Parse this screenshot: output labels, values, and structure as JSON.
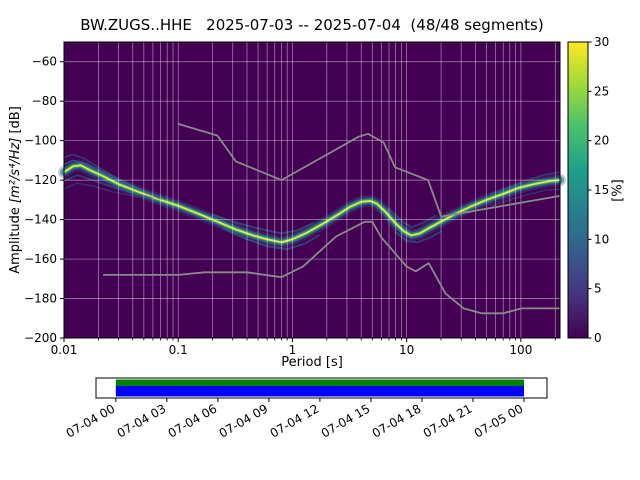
{
  "figure": {
    "title": "BW.ZUGS..HHE   2025-07-03 -- 2025-07-04  (48/48 segments)",
    "xlabel": "Period [s]",
    "ylabel": {
      "pre": "Amplitude ",
      "math": "[m²/s⁴/Hz]",
      "post": " [dB]"
    },
    "colorbar_label": "[%]"
  },
  "chart_data": {
    "type": "heatmap",
    "title": "BW.ZUGS..HHE   2025-07-03 -- 2025-07-04  (48/48 segments)",
    "xlabel": "Period [s]",
    "ylabel": "Amplitude [m^2/s^4/Hz] [dB]",
    "x_scale": "log",
    "xlim": [
      0.01,
      220
    ],
    "ylim": [
      -200,
      -50
    ],
    "x_ticks": {
      "values": [
        0.01,
        0.1,
        1,
        10,
        100
      ],
      "labels": [
        "0.01",
        "0.1",
        "1",
        "10",
        "100"
      ]
    },
    "y_ticks": {
      "values": [
        -200,
        -180,
        -160,
        -140,
        -120,
        -100,
        -80,
        -60
      ],
      "labels": [
        "−200",
        "−180",
        "−160",
        "−140",
        "−120",
        "−100",
        "−80",
        "−60"
      ]
    },
    "background_color": "#440154",
    "grid_color": "#ffffff",
    "colorbar": {
      "label": "[%]",
      "ticks": [
        "0",
        "5",
        "10",
        "15",
        "20",
        "25",
        "30"
      ],
      "tick_values": [
        0,
        5,
        10,
        15,
        20,
        25,
        30
      ],
      "vmin": 0,
      "vmax": 30,
      "colormap": "viridis",
      "colors": [
        "#440154",
        "#46327e",
        "#365c8d",
        "#277f8e",
        "#1fa187",
        "#4ac16d",
        "#a0da39",
        "#fde725"
      ]
    },
    "psd_mode_db_by_period": [
      [
        0.01,
        -116
      ],
      [
        0.012,
        -113
      ],
      [
        0.014,
        -112.5
      ],
      [
        0.017,
        -115
      ],
      [
        0.022,
        -118
      ],
      [
        0.03,
        -122
      ],
      [
        0.045,
        -126
      ],
      [
        0.07,
        -130
      ],
      [
        0.1,
        -133
      ],
      [
        0.15,
        -137
      ],
      [
        0.22,
        -141
      ],
      [
        0.32,
        -145
      ],
      [
        0.45,
        -148
      ],
      [
        0.6,
        -150
      ],
      [
        0.8,
        -151.5
      ],
      [
        1.0,
        -150
      ],
      [
        1.3,
        -147
      ],
      [
        1.8,
        -142.5
      ],
      [
        2.5,
        -137.5
      ],
      [
        3.2,
        -133.5
      ],
      [
        4.0,
        -131
      ],
      [
        4.8,
        -130.5
      ],
      [
        5.5,
        -132
      ],
      [
        6.5,
        -136
      ],
      [
        8,
        -142
      ],
      [
        9.5,
        -146
      ],
      [
        11,
        -148
      ],
      [
        13,
        -147
      ],
      [
        16,
        -144
      ],
      [
        20,
        -141
      ],
      [
        27,
        -137
      ],
      [
        36,
        -133.5
      ],
      [
        50,
        -130
      ],
      [
        70,
        -127
      ],
      [
        95,
        -124
      ],
      [
        130,
        -122
      ],
      [
        180,
        -120.5
      ],
      [
        220,
        -120
      ]
    ],
    "band_layers": [
      {
        "color": "#3b528b",
        "width": 12,
        "opacity": 0.3
      },
      {
        "color": "#2c728e",
        "width": 8,
        "opacity": 0.5
      },
      {
        "color": "#21918c",
        "width": 5,
        "opacity": 0.8
      },
      {
        "color": "#35b779",
        "width": 3,
        "opacity": 0.9
      },
      {
        "color": "#fde725",
        "width": 1.6,
        "opacity": 1.0
      }
    ],
    "spread_lines": [
      {
        "color": "#3b528b",
        "width": 1.6,
        "opacity": 0.65,
        "points": [
          [
            0.01,
            -108.5
          ],
          [
            0.012,
            -107
          ],
          [
            0.015,
            -109
          ],
          [
            0.02,
            -113.5
          ],
          [
            0.03,
            -119.5
          ],
          [
            0.05,
            -125.5
          ],
          [
            0.07,
            -129.5
          ]
        ]
      },
      {
        "color": "#31688e",
        "width": 1.6,
        "opacity": 0.7,
        "points": [
          [
            0.01,
            -112
          ],
          [
            0.012,
            -110
          ],
          [
            0.016,
            -112
          ],
          [
            0.022,
            -116
          ],
          [
            0.035,
            -121.5
          ],
          [
            0.06,
            -127.5
          ]
        ]
      },
      {
        "color": "#31688e",
        "width": 1.6,
        "opacity": 0.6,
        "points": [
          [
            0.01,
            -120.5
          ],
          [
            0.013,
            -117.5
          ],
          [
            0.017,
            -119.5
          ],
          [
            0.025,
            -123
          ],
          [
            0.04,
            -126.5
          ],
          [
            0.06,
            -129
          ]
        ]
      },
      {
        "color": "#3b528b",
        "width": 1.6,
        "opacity": 0.5,
        "points": [
          [
            0.01,
            -124.5
          ],
          [
            0.013,
            -121.5
          ],
          [
            0.018,
            -123
          ],
          [
            0.027,
            -126
          ],
          [
            0.045,
            -128.5
          ]
        ]
      },
      {
        "color": "#2c728e",
        "width": 2,
        "opacity": 0.55,
        "points": [
          [
            0.2,
            -137.5
          ],
          [
            0.3,
            -141
          ],
          [
            0.5,
            -144.5
          ],
          [
            0.8,
            -147
          ],
          [
            1.1,
            -145.5
          ],
          [
            1.5,
            -142
          ]
        ]
      },
      {
        "color": "#2c728e",
        "width": 2,
        "opacity": 0.55,
        "points": [
          [
            0.25,
            -144.5
          ],
          [
            0.4,
            -150
          ],
          [
            0.6,
            -153.5
          ],
          [
            0.9,
            -155
          ],
          [
            1.3,
            -152
          ],
          [
            1.7,
            -148
          ]
        ]
      },
      {
        "color": "#2c728e",
        "width": 2,
        "opacity": 0.5,
        "points": [
          [
            7,
            -134.5
          ],
          [
            9,
            -140.5
          ],
          [
            11,
            -144
          ],
          [
            14,
            -141.5
          ],
          [
            18,
            -138
          ]
        ]
      },
      {
        "color": "#2c728e",
        "width": 2,
        "opacity": 0.5,
        "points": [
          [
            8,
            -146.5
          ],
          [
            10,
            -151
          ],
          [
            12.5,
            -151.5
          ],
          [
            16,
            -149
          ],
          [
            20,
            -146
          ]
        ]
      },
      {
        "color": "#31688e",
        "width": 1.6,
        "opacity": 0.55,
        "points": [
          [
            55,
            -127
          ],
          [
            80,
            -123.5
          ],
          [
            120,
            -119.5
          ],
          [
            170,
            -117
          ],
          [
            220,
            -116
          ]
        ]
      },
      {
        "color": "#3b528b",
        "width": 1.6,
        "opacity": 0.5,
        "points": [
          [
            55,
            -133
          ],
          [
            80,
            -130
          ],
          [
            120,
            -127
          ],
          [
            170,
            -125
          ],
          [
            220,
            -124.5
          ]
        ]
      }
    ],
    "noise_models": {
      "color": "#8a8a8a",
      "width": 1.8,
      "nhnm": [
        [
          0.1,
          -91.5
        ],
        [
          0.22,
          -97.4
        ],
        [
          0.32,
          -110.5
        ],
        [
          0.8,
          -120.0
        ],
        [
          3.8,
          -98.0
        ],
        [
          4.6,
          -96.5
        ],
        [
          6.3,
          -101.0
        ],
        [
          7.9,
          -113.5
        ],
        [
          15.4,
          -120.0
        ],
        [
          20.0,
          -138.5
        ],
        [
          220.0,
          -128.0
        ]
      ],
      "nlnm": [
        [
          0.022,
          -168.0
        ],
        [
          0.1,
          -168.0
        ],
        [
          0.17,
          -166.7
        ],
        [
          0.4,
          -166.7
        ],
        [
          0.8,
          -169.2
        ],
        [
          1.24,
          -163.7
        ],
        [
          2.4,
          -148.6
        ],
        [
          4.3,
          -141.1
        ],
        [
          5.0,
          -141.1
        ],
        [
          6.0,
          -149.0
        ],
        [
          10.0,
          -163.8
        ],
        [
          12.0,
          -166.2
        ],
        [
          15.6,
          -162.1
        ],
        [
          21.9,
          -177.5
        ],
        [
          31.6,
          -185.0
        ],
        [
          45.0,
          -187.5
        ],
        [
          70.0,
          -187.5
        ],
        [
          101.0,
          -185.0
        ],
        [
          220.0,
          -185.0
        ]
      ]
    }
  },
  "timeline": {
    "tick_labels": [
      "07-04 00",
      "07-04 03",
      "07-04 06",
      "07-04 09",
      "07-04 12",
      "07-04 15",
      "07-04 18",
      "07-04 21",
      "07-05 00"
    ],
    "coverage_color_top": "#008000",
    "coverage_color_bottom": "#0000ff",
    "box_facecolor": "#ffffff",
    "bar_start_frac": 0.044,
    "bar_end_frac": 0.949
  }
}
